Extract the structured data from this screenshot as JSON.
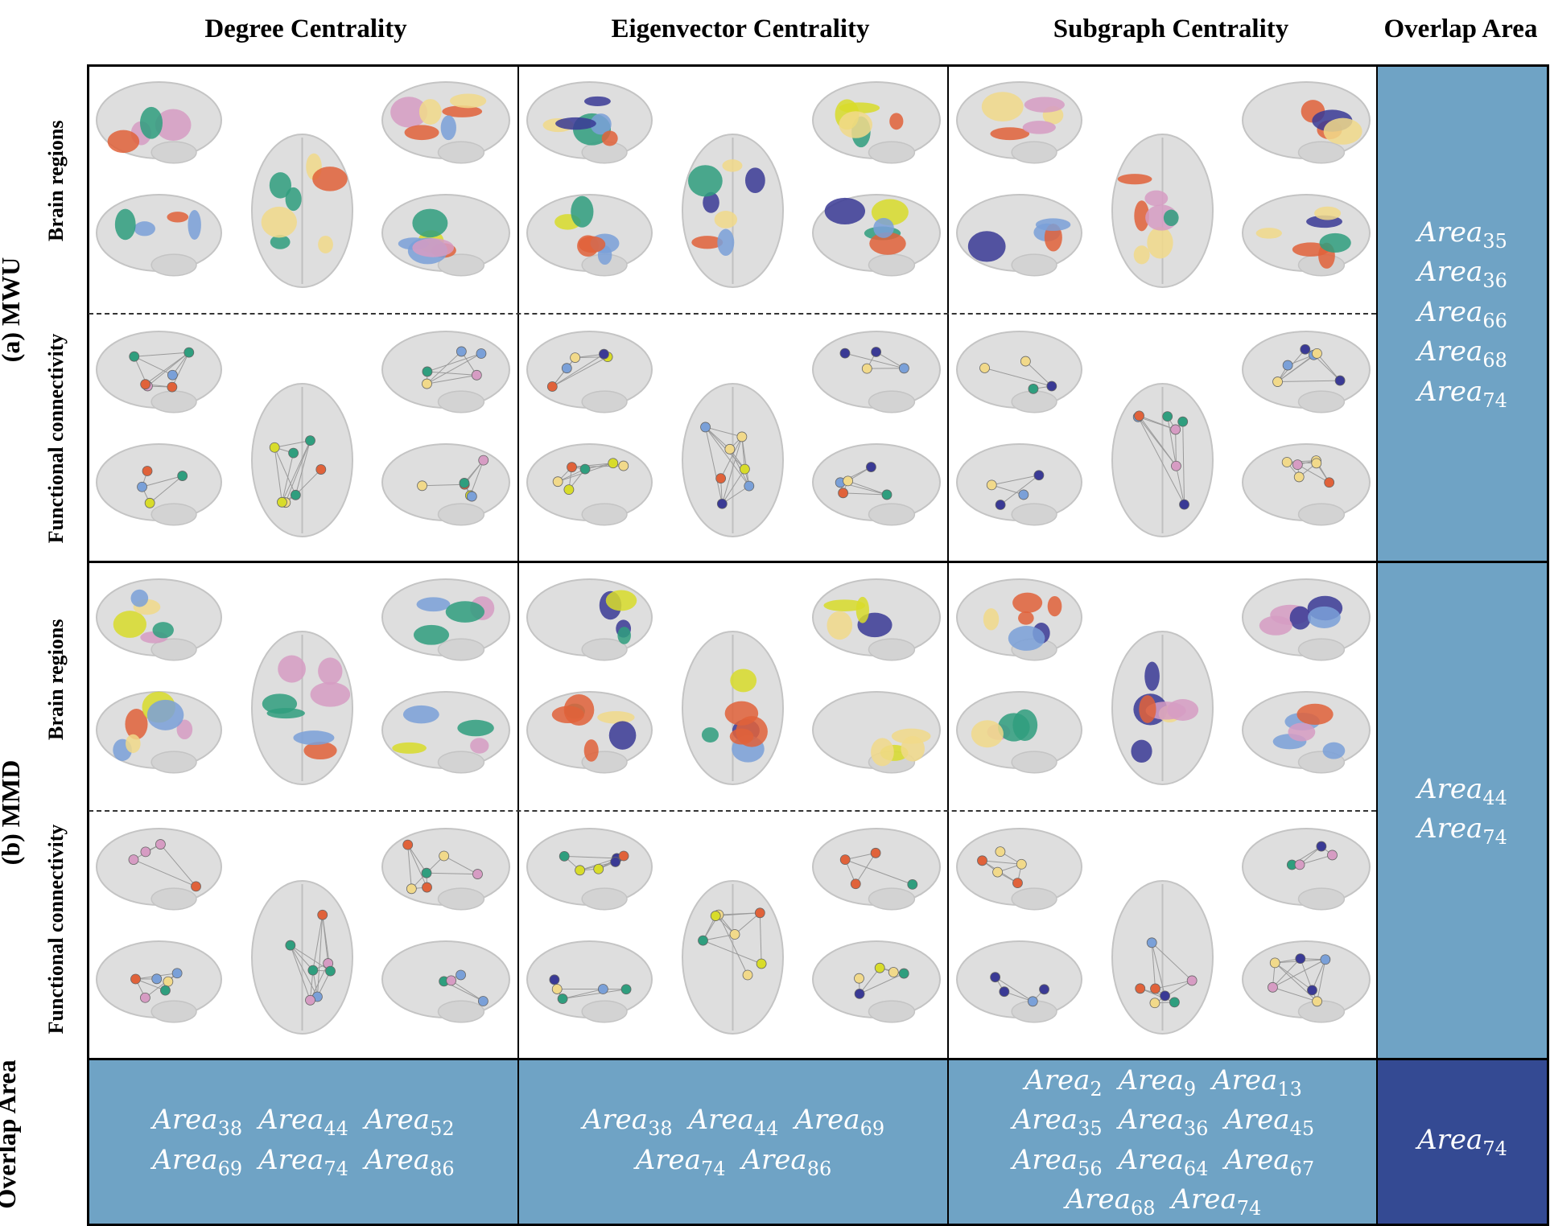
{
  "column_headers": [
    "Degree Centrality",
    "Eigenvector Centrality",
    "Subgraph Centrality",
    "Overlap Area"
  ],
  "row_headers": [
    "(a) MWU",
    "(b) MMD",
    "Overlap Area"
  ],
  "sub_row_labels": [
    "Brain regions",
    "Functional connectivity"
  ],
  "overlap_right": {
    "mwu": [
      [
        "35"
      ],
      [
        "36"
      ],
      [
        "66"
      ],
      [
        "68"
      ],
      [
        "74"
      ]
    ],
    "mmd": [
      [
        "44"
      ],
      [
        "74"
      ]
    ],
    "all": [
      [
        "74"
      ]
    ]
  },
  "overlap_bottom": {
    "degree": [
      [
        "38",
        "44",
        "52"
      ],
      [
        "69",
        "74",
        "86"
      ]
    ],
    "eigenvector": [
      [
        "38",
        "44",
        "69"
      ],
      [
        "74",
        "86"
      ]
    ],
    "subgraph": [
      [
        "2",
        "9",
        "13"
      ],
      [
        "35",
        "36",
        "45"
      ],
      [
        "56",
        "64",
        "67"
      ],
      [
        "68",
        "74"
      ]
    ]
  },
  "area_prefix": "Area",
  "colors": {
    "overlap_cell": "#6fa3c5",
    "overlap_total": "#344a93",
    "region_blue": "#7aa0d8",
    "region_orange": "#e0623a",
    "region_green": "#2f9e7e",
    "region_yellow": "#f1d98a",
    "region_lime": "#d8dc2a",
    "region_pink": "#d69cc3",
    "region_navy": "#3a3a95",
    "brain_gray": "#d9d9d9"
  }
}
